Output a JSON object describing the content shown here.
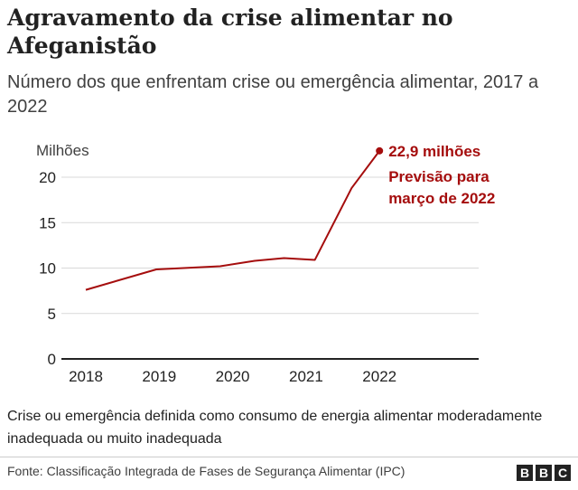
{
  "title": "Agravamento da crise alimentar no Afeganistão",
  "subtitle": "Número dos que enfrentam crise ou emergência alimentar, 2017 a 2022",
  "note": "Crise ou emergência definida como consumo de energia alimentar moderadamente inadequada ou muito inadequada",
  "source": "Fonte: Classificação Integrada de Fases de Segurança Alimentar (IPC)",
  "logo": [
    "B",
    "B",
    "C"
  ],
  "chart_data": {
    "type": "line",
    "ylabel": "Milhões",
    "ylim": [
      0,
      22.9
    ],
    "yticks": [
      0,
      5,
      10,
      15,
      20
    ],
    "xticks": [
      "2018",
      "2019",
      "2020",
      "2021",
      "2022"
    ],
    "xlim": [
      2017.7,
      2023.4
    ],
    "grid": true,
    "color": "#a50d0d",
    "series": [
      {
        "x": [
          2018.0,
          2018.96,
          2019.83,
          2020.3,
          2020.7,
          2021.12,
          2021.62,
          2022.0
        ],
        "y": [
          7.6,
          9.85,
          10.2,
          10.8,
          11.1,
          10.9,
          18.8,
          22.9
        ]
      }
    ],
    "annotations": {
      "value": "22,9 milhões",
      "line1": "Previsão para",
      "line2": "março de 2022"
    }
  }
}
